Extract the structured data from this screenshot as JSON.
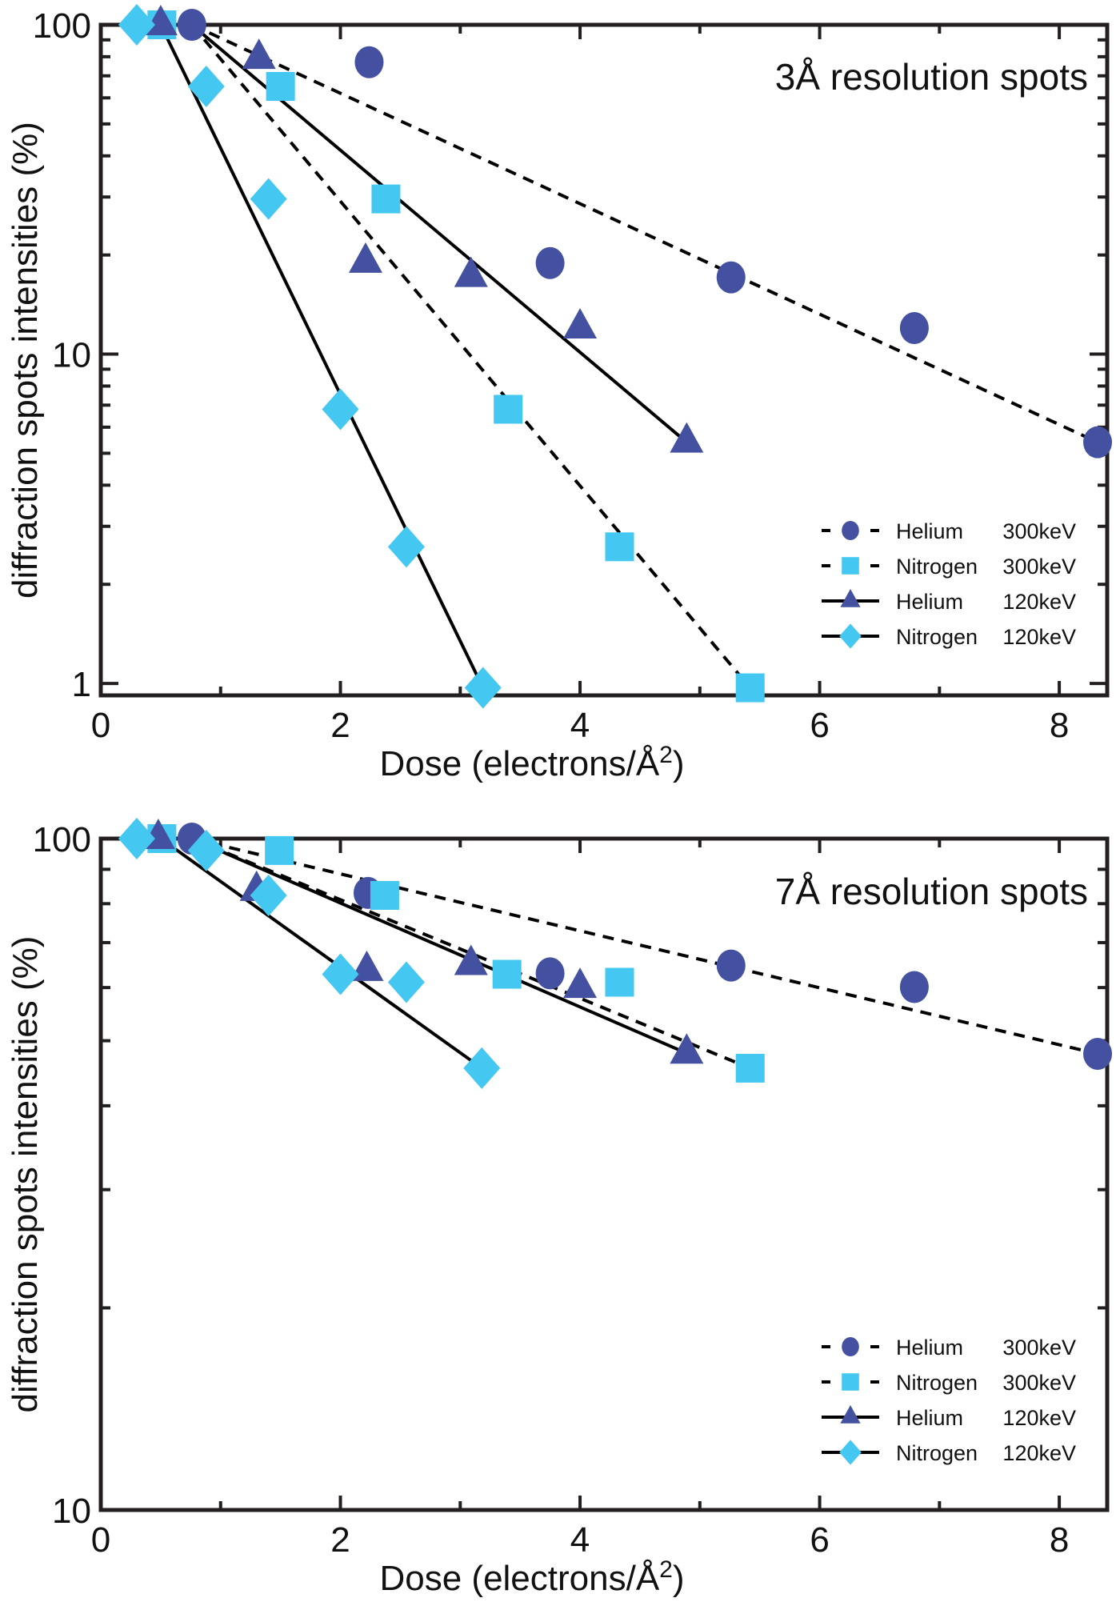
{
  "chart_data": [
    {
      "type": "scatter",
      "title": "3Å resolution spots",
      "xlabel": "Dose (electrons/Å²)",
      "xlabel_base": "Dose (electrons/Å",
      "xlabel_sup": "2",
      "xlabel_end": ")",
      "ylabel": "diffraction spots intensities (%)",
      "yscale": "log",
      "xlim": [
        0,
        8.4
      ],
      "ylim": [
        0.92,
        100
      ],
      "xticks": [
        0,
        2,
        4,
        6,
        8
      ],
      "xtick_labels": [
        "0",
        "2",
        "4",
        "6",
        "8"
      ],
      "xminor": [
        1,
        3,
        5,
        7
      ],
      "yticks": [
        1,
        10,
        100
      ],
      "ytick_labels": [
        "1",
        "10",
        "100"
      ],
      "legend_position": "bottom-right",
      "grid": false,
      "series": [
        {
          "name": "Helium 300keV",
          "label_gas": "Helium",
          "label_energy": "300keV",
          "marker": "circle",
          "color": "#4451A1",
          "line": "dashed",
          "x": [
            0.76,
            2.24,
            3.75,
            5.26,
            6.79,
            8.32
          ],
          "y": [
            100,
            77,
            18.9,
            17.1,
            12.0,
            5.4
          ],
          "fit": {
            "x": [
              0.76,
              8.32
            ],
            "y": [
              100,
              5.4
            ]
          }
        },
        {
          "name": "Nitrogen 300keV",
          "label_gas": "Nitrogen",
          "label_energy": "300keV",
          "marker": "square",
          "color": "#44C8F2",
          "line": "dashed",
          "x": [
            0.51,
            1.5,
            2.38,
            3.4,
            4.33,
            5.42
          ],
          "y": [
            100,
            65,
            29.6,
            6.8,
            2.6,
            0.97
          ],
          "fit": {
            "x": [
              0.76,
              5.42
            ],
            "y": [
              100,
              0.97
            ]
          }
        },
        {
          "name": "Helium 120keV",
          "label_gas": "Helium",
          "label_energy": "120keV",
          "marker": "triangle",
          "color": "#4451A1",
          "line": "solid",
          "x": [
            0.5,
            1.32,
            2.21,
            3.09,
            4.0,
            4.89
          ],
          "y": [
            100,
            79,
            19,
            17.2,
            12,
            5.4
          ],
          "fit": {
            "x": [
              0.76,
              4.89
            ],
            "y": [
              100,
              5.4
            ]
          }
        },
        {
          "name": "Nitrogen 120keV",
          "label_gas": "Nitrogen",
          "label_energy": "120keV",
          "marker": "diamond",
          "color": "#44C8F2",
          "line": "solid",
          "x": [
            0.3,
            0.88,
            1.4,
            2.0,
            2.55,
            3.19
          ],
          "y": [
            100,
            65,
            29.6,
            6.8,
            2.6,
            0.97
          ],
          "fit": {
            "x": [
              0.5,
              3.19
            ],
            "y": [
              100,
              0.97
            ]
          }
        }
      ]
    },
    {
      "type": "scatter",
      "title": "7Å resolution spots",
      "xlabel": "Dose (electrons/Å²)",
      "xlabel_base": "Dose (electrons/Å",
      "xlabel_sup": "2",
      "xlabel_end": ")",
      "ylabel": "diffraction spots intensities (%)",
      "yscale": "log",
      "xlim": [
        0,
        8.4
      ],
      "ylim": [
        10,
        100
      ],
      "xticks": [
        0,
        2,
        4,
        6,
        8
      ],
      "xtick_labels": [
        "0",
        "2",
        "4",
        "6",
        "8"
      ],
      "xminor": [
        1,
        3,
        5,
        7
      ],
      "yticks": [
        10,
        100
      ],
      "ytick_labels": [
        "10",
        "100"
      ],
      "legend_position": "bottom-right",
      "grid": false,
      "series": [
        {
          "name": "Helium 300keV",
          "label_gas": "Helium",
          "label_energy": "300keV",
          "marker": "circle",
          "color": "#4451A1",
          "line": "dashed",
          "x": [
            0.76,
            2.23,
            3.75,
            5.26,
            6.79,
            8.32
          ],
          "y": [
            100,
            83,
            63,
            64.7,
            60.1,
            47.8
          ],
          "fit": {
            "x": [
              0.76,
              8.32
            ],
            "y": [
              100,
              47.8
            ]
          }
        },
        {
          "name": "Nitrogen 300keV",
          "label_gas": "Nitrogen",
          "label_energy": "300keV",
          "marker": "square",
          "color": "#44C8F2",
          "line": "dashed",
          "x": [
            0.51,
            1.49,
            2.37,
            3.39,
            4.33,
            5.42
          ],
          "y": [
            100,
            96,
            82.3,
            62.8,
            61.1,
            45.5
          ],
          "fit": {
            "x": [
              0.76,
              5.42
            ],
            "y": [
              100,
              45.5
            ]
          }
        },
        {
          "name": "Helium 120keV",
          "label_gas": "Helium",
          "label_energy": "120keV",
          "marker": "triangle",
          "color": "#4451A1",
          "line": "solid",
          "x": [
            0.48,
            1.3,
            2.22,
            3.09,
            4.0,
            4.89
          ],
          "y": [
            100,
            83.7,
            63.6,
            64.9,
            60,
            47.9
          ],
          "fit": {
            "x": [
              0.76,
              4.89
            ],
            "y": [
              100,
              47.9
            ]
          }
        },
        {
          "name": "Nitrogen 120keV",
          "label_gas": "Nitrogen",
          "label_energy": "120keV",
          "marker": "diamond",
          "color": "#44C8F2",
          "line": "solid",
          "x": [
            0.3,
            0.88,
            1.4,
            2.0,
            2.55,
            3.18
          ],
          "y": [
            100,
            96,
            82.3,
            62.8,
            61.1,
            45.5
          ],
          "fit": {
            "x": [
              0.5,
              3.18
            ],
            "y": [
              100,
              45.5
            ]
          }
        }
      ]
    }
  ]
}
